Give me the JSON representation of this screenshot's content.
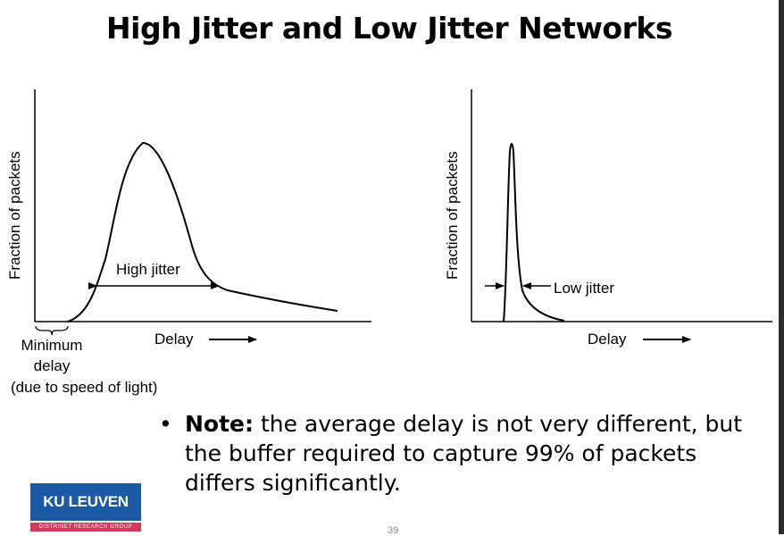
{
  "title": "High Jitter and Low Jitter Networks",
  "left_graph": {
    "ylabel": "Fraction of packets",
    "xlabel": "Delay",
    "span_label": "High jitter",
    "min_delay_lines": [
      "Minimum",
      "delay",
      "(due to speed of light)"
    ]
  },
  "right_graph": {
    "ylabel": "Fraction of packets",
    "xlabel": "Delay",
    "span_label": "Low jitter"
  },
  "note": {
    "bullet": "•",
    "bold": "Note:",
    "text": " the average delay is not very different, but the buffer required to capture 99% of packets differs significantly."
  },
  "logo": {
    "main": "KU LEUVEN",
    "sub": "DISTRINET RESEARCH GROUP",
    "colors": {
      "main": "#1d5aa5",
      "sub": "#d6385b"
    }
  },
  "page_number": "39"
}
